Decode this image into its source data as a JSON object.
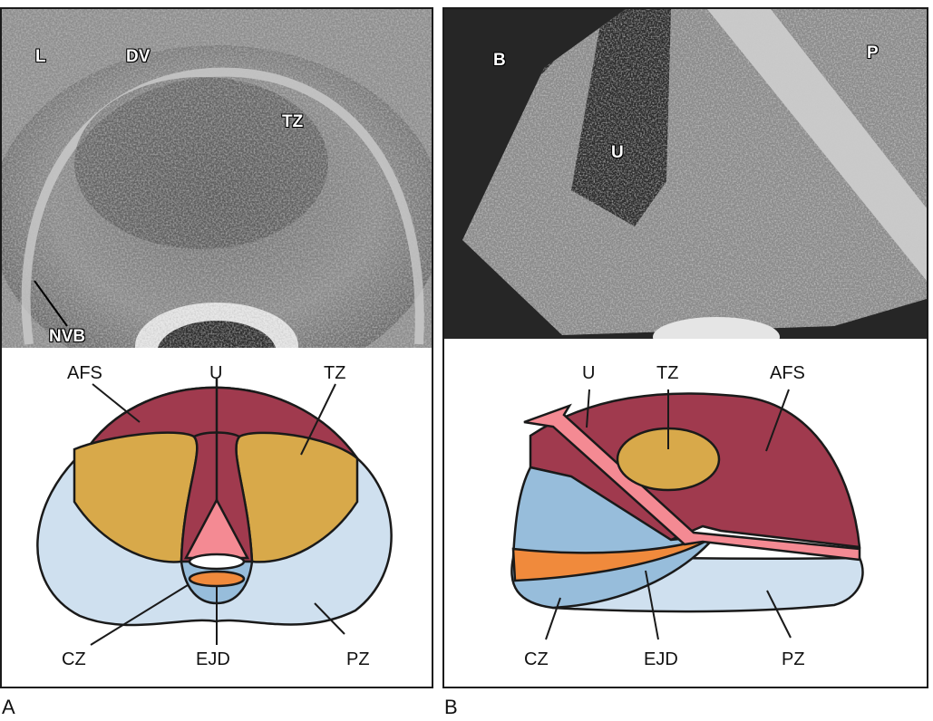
{
  "panels": [
    {
      "letter": "A",
      "ultrasound_labels": [
        "L",
        "DV",
        "TZ",
        "NVB"
      ],
      "diagram_labels": {
        "afs": "AFS",
        "u": "U",
        "tz": "TZ",
        "cz": "CZ",
        "ejd": "EJD",
        "pz": "PZ"
      }
    },
    {
      "letter": "B",
      "ultrasound_labels": [
        "B",
        "P",
        "U"
      ],
      "diagram_labels": {
        "u": "U",
        "tz": "TZ",
        "afs": "AFS",
        "cz": "CZ",
        "ejd": "EJD",
        "pz": "PZ"
      }
    }
  ],
  "colors": {
    "afs": "#a03a4e",
    "tz": "#d8a94a",
    "pz": "#cfe0ef",
    "cz": "#97bddb",
    "urethra": "#f48a93",
    "ejd": "#f08a3c",
    "outline": "#1a1a1a"
  }
}
